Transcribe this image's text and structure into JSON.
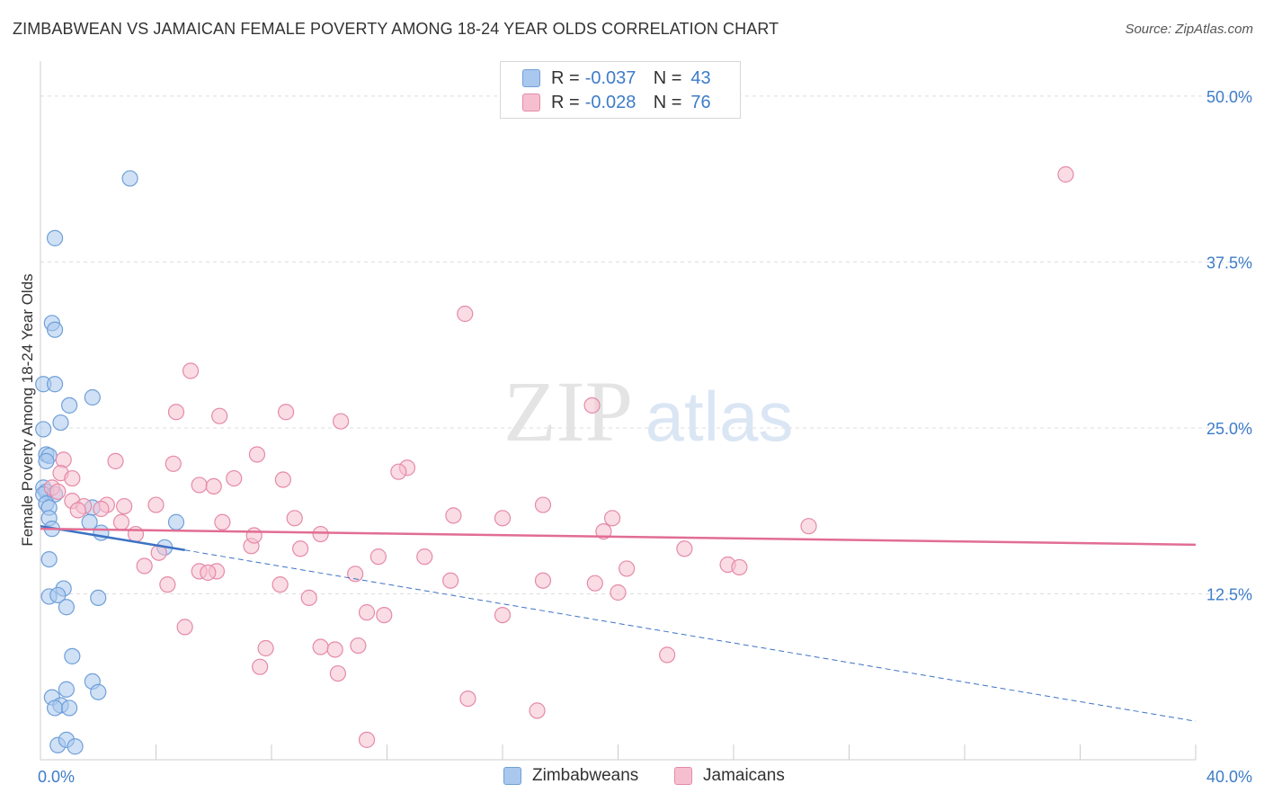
{
  "title": "ZIMBABWEAN VS JAMAICAN FEMALE POVERTY AMONG 18-24 YEAR OLDS CORRELATION CHART",
  "source": "Source: ZipAtlas.com",
  "watermark": {
    "zip": "ZIP",
    "atlas": "atlas"
  },
  "colors": {
    "blue_fill": "#aac8ee",
    "blue_stroke": "#6f9fd8",
    "blue_line": "#3d72c4",
    "pink_fill": "#f6bfd0",
    "pink_stroke": "#e58aa8",
    "pink_line": "#e26d93",
    "axis_text": "#3d7cc9",
    "grid": "#dddddd"
  },
  "legend_top": [
    {
      "r_label": "R =",
      "r_value": "-0.037",
      "n_label": "N =",
      "n_value": "43"
    },
    {
      "r_label": "R =",
      "r_value": "-0.028",
      "n_label": "N =",
      "n_value": "76"
    }
  ],
  "legend_bottom": [
    "Zimbabweans",
    "Jamaicans"
  ],
  "chart_data": {
    "type": "scatter",
    "title": "ZIMBABWEAN VS JAMAICAN FEMALE POVERTY AMONG 18-24 YEAR OLDS CORRELATION CHART",
    "xlabel": "",
    "ylabel": "Female Poverty Among 18-24 Year Olds",
    "xlim": [
      0,
      40
    ],
    "ylim": [
      0,
      52.5
    ],
    "x_tick_labels": [
      {
        "value": 0,
        "label": "0.0%"
      },
      {
        "value": 40,
        "label": "40.0%"
      }
    ],
    "y_tick_labels": [
      {
        "value": 12.5,
        "label": "12.5%"
      },
      {
        "value": 25,
        "label": "25.0%"
      },
      {
        "value": 37.5,
        "label": "37.5%"
      },
      {
        "value": 50,
        "label": "50.0%"
      }
    ],
    "x_minor_ticks": [
      4,
      8,
      12,
      16,
      20,
      24,
      28,
      32,
      36,
      40
    ],
    "legend_position": "top-center",
    "series": [
      {
        "name": "Zimbabweans",
        "r": -0.037,
        "n": 43,
        "trend": {
          "x_start": 0,
          "y_start": 17.6,
          "x_solid_end": 5.0,
          "y_solid_end": 15.8,
          "x_end": 40,
          "y_end": 2.9
        },
        "points": [
          [
            3.1,
            43.8
          ],
          [
            0.5,
            39.3
          ],
          [
            0.4,
            32.9
          ],
          [
            0.5,
            32.4
          ],
          [
            0.1,
            28.3
          ],
          [
            0.5,
            28.3
          ],
          [
            1.8,
            27.3
          ],
          [
            1.0,
            26.7
          ],
          [
            0.7,
            25.4
          ],
          [
            0.1,
            24.9
          ],
          [
            0.2,
            23.0
          ],
          [
            0.3,
            22.9
          ],
          [
            0.2,
            22.5
          ],
          [
            0.1,
            20.5
          ],
          [
            0.2,
            20.2
          ],
          [
            0.1,
            20.0
          ],
          [
            0.5,
            20.0
          ],
          [
            0.2,
            19.3
          ],
          [
            0.3,
            19.0
          ],
          [
            1.8,
            19.0
          ],
          [
            0.3,
            18.2
          ],
          [
            1.7,
            17.9
          ],
          [
            4.7,
            17.9
          ],
          [
            0.4,
            17.4
          ],
          [
            2.1,
            17.1
          ],
          [
            4.3,
            16.0
          ],
          [
            0.3,
            15.1
          ],
          [
            0.8,
            12.9
          ],
          [
            0.3,
            12.3
          ],
          [
            0.6,
            12.4
          ],
          [
            2.0,
            12.2
          ],
          [
            0.9,
            11.5
          ],
          [
            1.1,
            7.8
          ],
          [
            1.8,
            5.9
          ],
          [
            0.9,
            5.3
          ],
          [
            2.0,
            5.1
          ],
          [
            0.4,
            4.7
          ],
          [
            0.7,
            4.1
          ],
          [
            0.5,
            3.9
          ],
          [
            1.0,
            3.9
          ],
          [
            0.6,
            1.1
          ],
          [
            0.9,
            1.5
          ],
          [
            1.2,
            1.0
          ]
        ]
      },
      {
        "name": "Jamaicans",
        "r": -0.028,
        "n": 76,
        "trend": {
          "x_start": 0,
          "y_start": 17.4,
          "x_end": 40,
          "y_end": 16.2
        },
        "points": [
          [
            35.5,
            44.1
          ],
          [
            14.7,
            33.6
          ],
          [
            5.2,
            29.3
          ],
          [
            19.1,
            26.7
          ],
          [
            4.7,
            26.2
          ],
          [
            8.5,
            26.2
          ],
          [
            6.2,
            25.9
          ],
          [
            10.4,
            25.5
          ],
          [
            0.8,
            22.6
          ],
          [
            2.6,
            22.5
          ],
          [
            4.6,
            22.3
          ],
          [
            7.5,
            23.0
          ],
          [
            12.7,
            22.0
          ],
          [
            12.4,
            21.7
          ],
          [
            0.7,
            21.6
          ],
          [
            1.1,
            21.2
          ],
          [
            6.7,
            21.2
          ],
          [
            8.4,
            21.1
          ],
          [
            5.5,
            20.7
          ],
          [
            6.0,
            20.6
          ],
          [
            0.4,
            20.5
          ],
          [
            0.6,
            20.2
          ],
          [
            1.1,
            19.5
          ],
          [
            1.5,
            19.1
          ],
          [
            2.3,
            19.2
          ],
          [
            2.9,
            19.1
          ],
          [
            4.0,
            19.2
          ],
          [
            17.4,
            19.2
          ],
          [
            2.1,
            18.9
          ],
          [
            1.3,
            18.8
          ],
          [
            14.3,
            18.4
          ],
          [
            8.8,
            18.2
          ],
          [
            16.0,
            18.2
          ],
          [
            19.8,
            18.2
          ],
          [
            6.3,
            17.9
          ],
          [
            2.8,
            17.9
          ],
          [
            26.6,
            17.6
          ],
          [
            19.5,
            17.2
          ],
          [
            3.3,
            17.0
          ],
          [
            9.7,
            17.0
          ],
          [
            7.3,
            16.1
          ],
          [
            9.0,
            15.9
          ],
          [
            22.3,
            15.9
          ],
          [
            4.1,
            15.6
          ],
          [
            11.7,
            15.3
          ],
          [
            13.3,
            15.3
          ],
          [
            3.6,
            14.6
          ],
          [
            23.8,
            14.7
          ],
          [
            24.2,
            14.5
          ],
          [
            20.3,
            14.4
          ],
          [
            5.5,
            14.2
          ],
          [
            6.1,
            14.2
          ],
          [
            10.9,
            14.0
          ],
          [
            5.8,
            14.1
          ],
          [
            4.4,
            13.2
          ],
          [
            8.3,
            13.2
          ],
          [
            14.2,
            13.5
          ],
          [
            17.4,
            13.5
          ],
          [
            19.2,
            13.3
          ],
          [
            20.0,
            12.6
          ],
          [
            9.3,
            12.2
          ],
          [
            11.3,
            11.1
          ],
          [
            11.9,
            10.9
          ],
          [
            16.0,
            10.9
          ],
          [
            5.0,
            10.0
          ],
          [
            7.8,
            8.4
          ],
          [
            9.7,
            8.5
          ],
          [
            10.2,
            8.3
          ],
          [
            11.0,
            8.6
          ],
          [
            21.7,
            7.9
          ],
          [
            7.6,
            7.0
          ],
          [
            10.3,
            6.5
          ],
          [
            14.8,
            4.6
          ],
          [
            17.2,
            3.7
          ],
          [
            11.3,
            1.5
          ],
          [
            7.4,
            16.9
          ]
        ]
      }
    ]
  }
}
